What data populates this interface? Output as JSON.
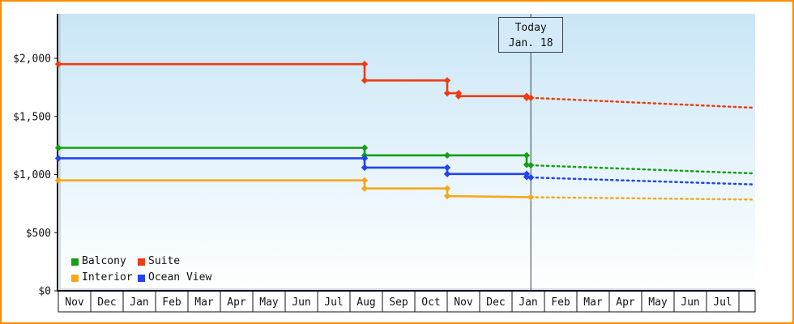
{
  "chart_data": {
    "type": "line",
    "today": {
      "line1": "Today",
      "line2": "Jan. 18",
      "month_x": 14.58
    },
    "y_axis": {
      "ticks": [
        0,
        500,
        1000,
        1500,
        2000
      ],
      "labels": [
        "$0",
        "$500",
        "$1,000",
        "$1,500",
        "$2,000"
      ],
      "range": [
        0,
        2380
      ]
    },
    "x_axis": {
      "months": [
        "Nov",
        "Dec",
        "Jan",
        "Feb",
        "Mar",
        "Apr",
        "May",
        "Jun",
        "Jul",
        "Aug",
        "Sep",
        "Oct",
        "Nov",
        "Dec",
        "Jan",
        "Feb",
        "Mar",
        "Apr",
        "May",
        "Jun",
        "Jul"
      ]
    },
    "series": [
      {
        "name": "Balcony",
        "color": "#14A014",
        "solid": [
          [
            0,
            1230
          ],
          [
            9.45,
            1230
          ],
          [
            9.45,
            1165
          ],
          [
            12.0,
            1165
          ],
          [
            14.45,
            1165
          ],
          [
            14.45,
            1085
          ],
          [
            14.58,
            1080
          ]
        ],
        "dotted": [
          [
            14.58,
            1080
          ],
          [
            21.45,
            1010
          ]
        ]
      },
      {
        "name": "Suite",
        "color": "#EE3C10",
        "solid": [
          [
            0,
            1950
          ],
          [
            9.45,
            1950
          ],
          [
            9.45,
            1810
          ],
          [
            12.0,
            1810
          ],
          [
            12.0,
            1700
          ],
          [
            12.35,
            1700
          ],
          [
            12.35,
            1675
          ],
          [
            14.45,
            1675
          ],
          [
            14.45,
            1660
          ],
          [
            14.58,
            1660
          ]
        ],
        "dotted": [
          [
            14.58,
            1660
          ],
          [
            21.45,
            1575
          ]
        ]
      },
      {
        "name": "Interior",
        "color": "#F6A81C",
        "solid": [
          [
            0,
            950
          ],
          [
            9.45,
            950
          ],
          [
            9.45,
            880
          ],
          [
            12.0,
            880
          ],
          [
            12.0,
            815
          ],
          [
            14.58,
            805
          ]
        ],
        "dotted": [
          [
            14.58,
            805
          ],
          [
            21.45,
            785
          ]
        ]
      },
      {
        "name": "Ocean View",
        "color": "#2244EE",
        "solid": [
          [
            0,
            1140
          ],
          [
            9.45,
            1140
          ],
          [
            9.45,
            1060
          ],
          [
            12.0,
            1060
          ],
          [
            12.0,
            1005
          ],
          [
            14.45,
            1005
          ],
          [
            14.45,
            980
          ],
          [
            14.58,
            975
          ]
        ],
        "dotted": [
          [
            14.58,
            975
          ],
          [
            21.45,
            915
          ]
        ]
      }
    ],
    "background": {
      "gradient_top": "#C9E6F6",
      "gradient_bottom": "#FFFFFF"
    },
    "frame_border_color": "#FF8C00",
    "legend": {
      "position": "bottom-left"
    }
  }
}
